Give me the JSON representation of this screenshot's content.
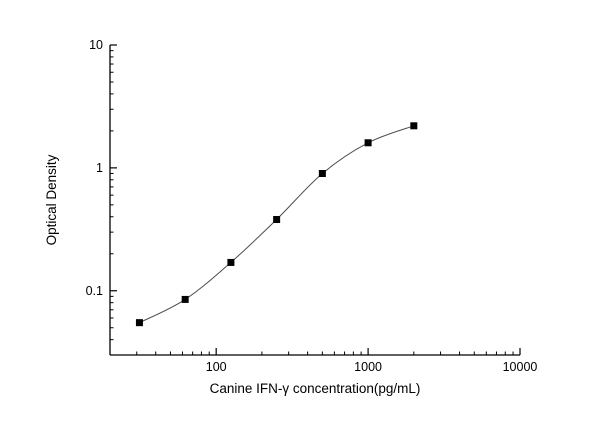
{
  "page": {
    "background_color": "#ffffff"
  },
  "chart_data": {
    "type": "scatter",
    "subtype": "scatter-with-smooth-line",
    "title": "",
    "xlabel": "Canine IFN-γ  concentration(pg/mL)",
    "ylabel": "Optical Density",
    "x_scale": "log",
    "y_scale": "log",
    "xlim": [
      20,
      10000
    ],
    "ylim": [
      0.03,
      10
    ],
    "x_major_ticks": [
      100,
      1000,
      10000
    ],
    "x_tick_labels": [
      "100",
      "1000",
      "10000"
    ],
    "y_major_ticks": [
      0.1,
      1,
      10
    ],
    "y_tick_labels": [
      "0.1",
      "1",
      "10"
    ],
    "grid": false,
    "legend": false,
    "marker": "square",
    "marker_color": "#000000",
    "line_color": "#4d4d4d",
    "axis_color": "#000000",
    "points": [
      {
        "x": 31.25,
        "y": 0.055
      },
      {
        "x": 62.5,
        "y": 0.085
      },
      {
        "x": 125,
        "y": 0.17
      },
      {
        "x": 250,
        "y": 0.38
      },
      {
        "x": 500,
        "y": 0.9
      },
      {
        "x": 1000,
        "y": 1.6
      },
      {
        "x": 2000,
        "y": 2.2
      }
    ]
  }
}
